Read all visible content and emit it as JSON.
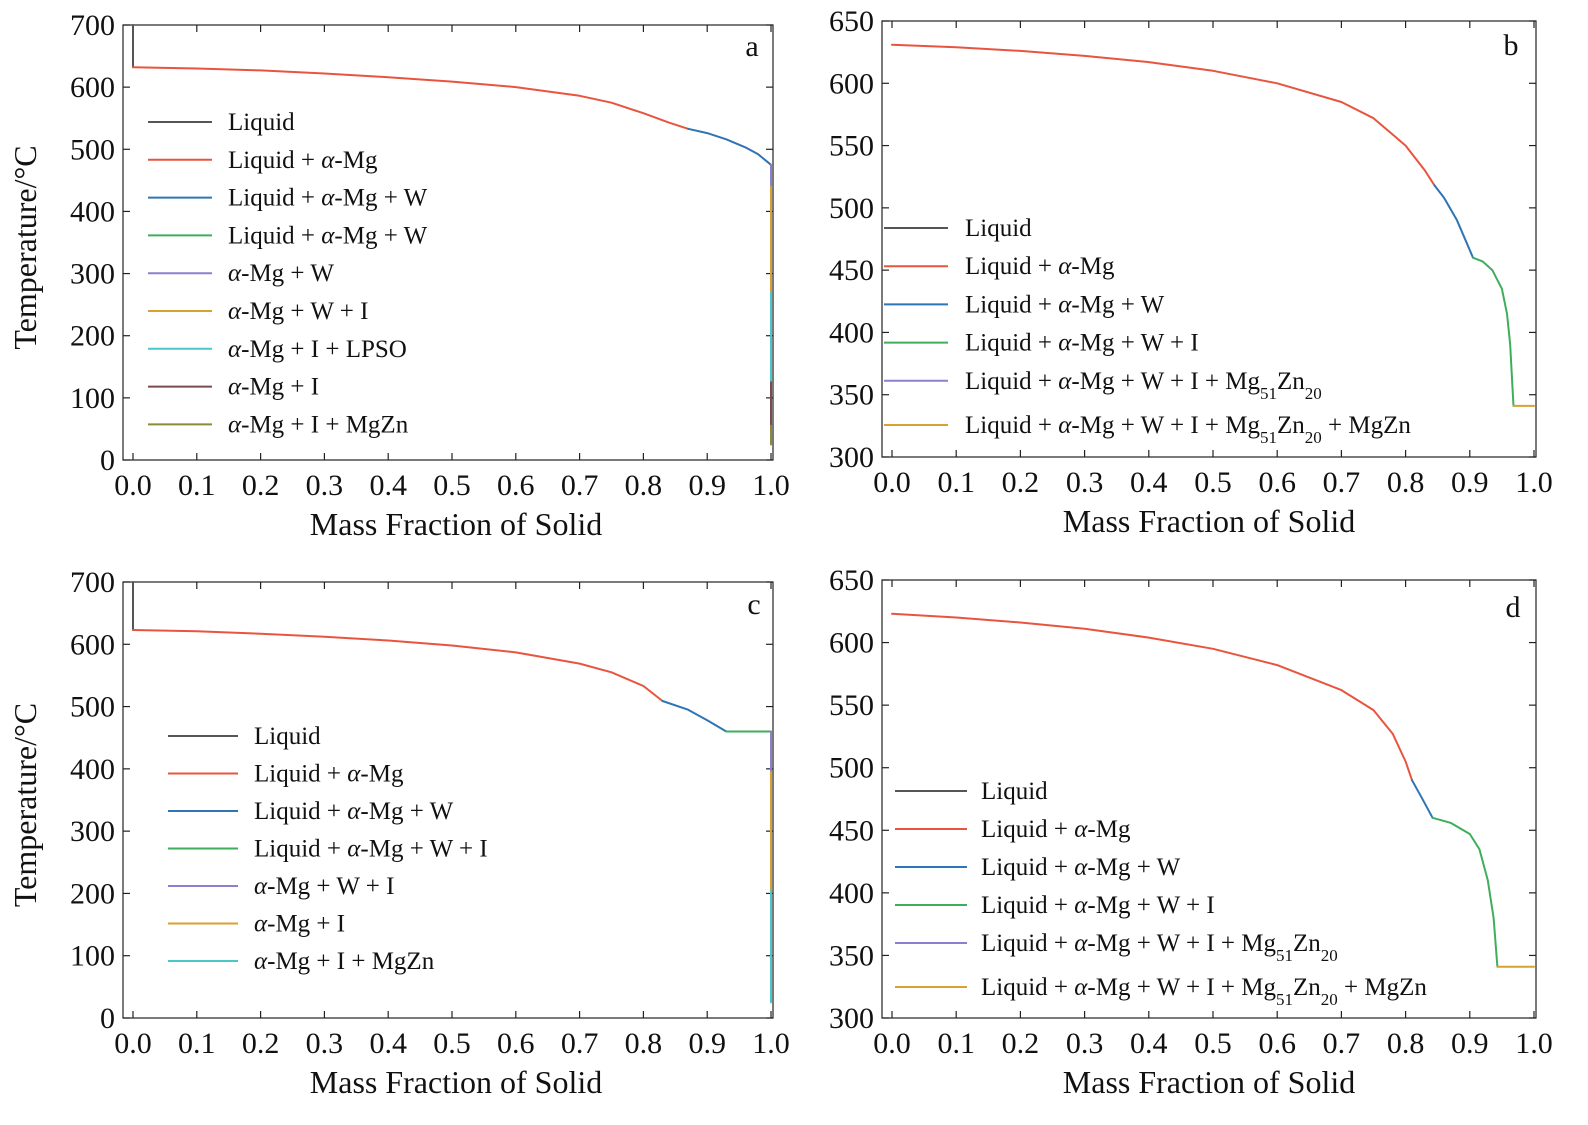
{
  "figure": {
    "description_colors": {
      "Liquid": "#555555",
      "alpha": "#e8553f",
      "blue": "#2f74b5",
      "green": "#3daf5c",
      "purple": "#8d7fcf",
      "orange": "#d9a032",
      "cyan": "#4cc7c7",
      "brown": "#7b4a4f",
      "olive": "#8e8a34"
    }
  },
  "chart_data": [
    {
      "type": "line",
      "panel": "a",
      "xlabel": "Mass Fraction of Solid",
      "ylabel": "Temperature/°C",
      "xlim": [
        0.0,
        1.0
      ],
      "ylim": [
        0,
        700
      ],
      "xticks": [
        "0.0",
        "0.1",
        "0.2",
        "0.3",
        "0.4",
        "0.5",
        "0.6",
        "0.7",
        "0.8",
        "0.9",
        "1.0"
      ],
      "yticks": [
        "0",
        "100",
        "200",
        "300",
        "400",
        "500",
        "600",
        "700"
      ],
      "legend": [
        {
          "label": "Liquid",
          "color": "#555555"
        },
        {
          "label": "Liquid + α-Mg",
          "color": "#e8553f"
        },
        {
          "label": "Liquid + α-Mg + W",
          "color": "#2f74b5"
        },
        {
          "label": "Liquid + α-Mg + W",
          "color": "#3daf5c"
        },
        {
          "label": "α-Mg + W",
          "color": "#8d7fcf"
        },
        {
          "label": "α-Mg + W + I",
          "color": "#d9a032"
        },
        {
          "label": "α-Mg + I + LPSO",
          "color": "#4cc7c7"
        },
        {
          "label": "α-Mg + I",
          "color": "#7b4a4f"
        },
        {
          "label": "α-Mg + I + MgZn",
          "color": "#8e8a34"
        }
      ],
      "series": [
        {
          "name": "Liquid",
          "color": "#555555",
          "points": [
            [
              0.0,
              700
            ],
            [
              0.0,
              632
            ]
          ]
        },
        {
          "name": "Liquid + α-Mg",
          "color": "#e8553f",
          "points": [
            [
              0.0,
              632
            ],
            [
              0.1,
              630
            ],
            [
              0.2,
              627
            ],
            [
              0.3,
              622
            ],
            [
              0.4,
              616
            ],
            [
              0.5,
              609
            ],
            [
              0.6,
              600
            ],
            [
              0.7,
              586
            ],
            [
              0.75,
              575
            ],
            [
              0.8,
              558
            ],
            [
              0.84,
              543
            ],
            [
              0.87,
              533
            ]
          ]
        },
        {
          "name": "Liquid + α-Mg + W",
          "color": "#2f74b5",
          "points": [
            [
              0.87,
              533
            ],
            [
              0.9,
              526
            ],
            [
              0.93,
              516
            ],
            [
              0.96,
              503
            ],
            [
              0.98,
              492
            ],
            [
              1.0,
              475
            ]
          ]
        },
        {
          "name": "α-Mg + W",
          "color": "#8d7fcf",
          "points": [
            [
              1.0,
              475
            ],
            [
              1.0,
              440
            ]
          ]
        },
        {
          "name": "α-Mg + W + I",
          "color": "#d9a032",
          "points": [
            [
              1.0,
              440
            ],
            [
              1.0,
              270
            ]
          ]
        },
        {
          "name": "α-Mg + I + LPSO",
          "color": "#4cc7c7",
          "points": [
            [
              1.0,
              270
            ],
            [
              1.0,
              125
            ]
          ]
        },
        {
          "name": "α-Mg + I",
          "color": "#7b4a4f",
          "points": [
            [
              1.0,
              125
            ],
            [
              1.0,
              55
            ]
          ]
        },
        {
          "name": "α-Mg + I + MgZn",
          "color": "#8e8a34",
          "points": [
            [
              1.0,
              55
            ],
            [
              1.0,
              25
            ]
          ]
        }
      ]
    },
    {
      "type": "line",
      "panel": "b",
      "xlabel": "Mass Fraction of Solid",
      "ylabel": "",
      "xlim": [
        0.0,
        1.0
      ],
      "ylim": [
        300,
        650
      ],
      "xticks": [
        "0.0",
        "0.1",
        "0.2",
        "0.3",
        "0.4",
        "0.5",
        "0.6",
        "0.7",
        "0.8",
        "0.9",
        "1.0"
      ],
      "yticks": [
        "300",
        "350",
        "400",
        "450",
        "500",
        "550",
        "600",
        "650"
      ],
      "legend": [
        {
          "label": "Liquid",
          "color": "#555555"
        },
        {
          "label": "Liquid + α-Mg",
          "color": "#e8553f"
        },
        {
          "label": "Liquid + α-Mg + W",
          "color": "#2f74b5"
        },
        {
          "label": "Liquid + α-Mg + W + I",
          "color": "#3daf5c"
        },
        {
          "label": "Liquid + α-Mg + W + I + Mg51Zn20",
          "color": "#8d7fcf"
        },
        {
          "label": "Liquid + α-Mg + W + I + Mg51Zn20 + MgZn",
          "color": "#d9a032"
        }
      ],
      "series": [
        {
          "name": "Liquid + α-Mg",
          "color": "#e8553f",
          "points": [
            [
              0.0,
              631
            ],
            [
              0.1,
              629
            ],
            [
              0.2,
              626
            ],
            [
              0.3,
              622
            ],
            [
              0.4,
              617
            ],
            [
              0.5,
              610
            ],
            [
              0.6,
              600
            ],
            [
              0.7,
              585
            ],
            [
              0.75,
              572
            ],
            [
              0.8,
              550
            ],
            [
              0.83,
              530
            ],
            [
              0.845,
              518
            ]
          ]
        },
        {
          "name": "Liquid + α-Mg + W",
          "color": "#2f74b5",
          "points": [
            [
              0.845,
              518
            ],
            [
              0.86,
              508
            ],
            [
              0.88,
              490
            ],
            [
              0.895,
              472
            ],
            [
              0.905,
              460
            ]
          ]
        },
        {
          "name": "Liquid + α-Mg + W + I",
          "color": "#3daf5c",
          "points": [
            [
              0.905,
              460
            ],
            [
              0.92,
              457
            ],
            [
              0.935,
              450
            ],
            [
              0.95,
              435
            ],
            [
              0.958,
              415
            ],
            [
              0.963,
              390
            ],
            [
              0.966,
              360
            ],
            [
              0.968,
              341
            ]
          ]
        },
        {
          "name": "Liquid + α-Mg + W + I + Mg51Zn20 + MgZn",
          "color": "#d9a032",
          "points": [
            [
              0.968,
              341
            ],
            [
              1.0,
              341
            ]
          ]
        }
      ]
    },
    {
      "type": "line",
      "panel": "c",
      "xlabel": "Mass Fraction of Solid",
      "ylabel": "Temperature/°C",
      "xlim": [
        0.0,
        1.0
      ],
      "ylim": [
        0,
        700
      ],
      "xticks": [
        "0.0",
        "0.1",
        "0.2",
        "0.3",
        "0.4",
        "0.5",
        "0.6",
        "0.7",
        "0.8",
        "0.9",
        "1.0"
      ],
      "yticks": [
        "0",
        "100",
        "200",
        "300",
        "400",
        "500",
        "600",
        "700"
      ],
      "legend": [
        {
          "label": "Liquid",
          "color": "#555555"
        },
        {
          "label": "Liquid + α-Mg",
          "color": "#e8553f"
        },
        {
          "label": "Liquid + α-Mg + W",
          "color": "#2f74b5"
        },
        {
          "label": "Liquid + α-Mg + W + I",
          "color": "#3daf5c"
        },
        {
          "label": "α-Mg + W + I",
          "color": "#8d7fcf"
        },
        {
          "label": "α-Mg + I",
          "color": "#d9a032"
        },
        {
          "label": "α-Mg + I + MgZn",
          "color": "#4cc7c7"
        }
      ],
      "series": [
        {
          "name": "Liquid",
          "color": "#555555",
          "points": [
            [
              0.0,
              700
            ],
            [
              0.0,
              623
            ]
          ]
        },
        {
          "name": "Liquid + α-Mg",
          "color": "#e8553f",
          "points": [
            [
              0.0,
              623
            ],
            [
              0.1,
              621
            ],
            [
              0.2,
              617
            ],
            [
              0.3,
              612
            ],
            [
              0.4,
              606
            ],
            [
              0.5,
              598
            ],
            [
              0.6,
              587
            ],
            [
              0.7,
              569
            ],
            [
              0.75,
              555
            ],
            [
              0.8,
              533
            ],
            [
              0.83,
              509
            ]
          ]
        },
        {
          "name": "Liquid + α-Mg + W",
          "color": "#2f74b5",
          "points": [
            [
              0.83,
              509
            ],
            [
              0.87,
              495
            ],
            [
              0.9,
              478
            ],
            [
              0.93,
              460
            ]
          ]
        },
        {
          "name": "Liquid + α-Mg + W + I",
          "color": "#3daf5c",
          "points": [
            [
              0.93,
              460
            ],
            [
              1.0,
              460
            ]
          ]
        },
        {
          "name": "α-Mg + W + I",
          "color": "#8d7fcf",
          "points": [
            [
              1.0,
              460
            ],
            [
              1.0,
              395
            ]
          ]
        },
        {
          "name": "α-Mg + I",
          "color": "#d9a032",
          "points": [
            [
              1.0,
              395
            ],
            [
              1.0,
              205
            ]
          ]
        },
        {
          "name": "α-Mg + I + MgZn",
          "color": "#4cc7c7",
          "points": [
            [
              1.0,
              205
            ],
            [
              1.0,
              25
            ]
          ]
        }
      ]
    },
    {
      "type": "line",
      "panel": "d",
      "xlabel": "Mass Fraction of Solid",
      "ylabel": "",
      "xlim": [
        0.0,
        1.0
      ],
      "ylim": [
        300,
        650
      ],
      "xticks": [
        "0.0",
        "0.1",
        "0.2",
        "0.3",
        "0.4",
        "0.5",
        "0.6",
        "0.7",
        "0.8",
        "0.9",
        "1.0"
      ],
      "yticks": [
        "300",
        "350",
        "400",
        "450",
        "500",
        "550",
        "600",
        "650"
      ],
      "legend": [
        {
          "label": "Liquid",
          "color": "#555555"
        },
        {
          "label": "Liquid + α-Mg",
          "color": "#e8553f"
        },
        {
          "label": "Liquid + α-Mg + W",
          "color": "#2f74b5"
        },
        {
          "label": "Liquid + α-Mg + W + I",
          "color": "#3daf5c"
        },
        {
          "label": "Liquid + α-Mg + W + I + Mg51Zn20",
          "color": "#8d7fcf"
        },
        {
          "label": "Liquid + α-Mg + W + I + Mg51Zn20 + MgZn",
          "color": "#d9a032"
        }
      ],
      "series": [
        {
          "name": "Liquid + α-Mg",
          "color": "#e8553f",
          "points": [
            [
              0.0,
              623
            ],
            [
              0.1,
              620
            ],
            [
              0.2,
              616
            ],
            [
              0.3,
              611
            ],
            [
              0.4,
              604
            ],
            [
              0.5,
              595
            ],
            [
              0.6,
              582
            ],
            [
              0.7,
              562
            ],
            [
              0.75,
              546
            ],
            [
              0.78,
              527
            ],
            [
              0.8,
              505
            ],
            [
              0.81,
              490
            ]
          ]
        },
        {
          "name": "Liquid + α-Mg + W",
          "color": "#2f74b5",
          "points": [
            [
              0.81,
              490
            ],
            [
              0.825,
              476
            ],
            [
              0.842,
              460
            ]
          ]
        },
        {
          "name": "Liquid + α-Mg + W + I",
          "color": "#3daf5c",
          "points": [
            [
              0.842,
              460
            ],
            [
              0.87,
              456
            ],
            [
              0.9,
              447
            ],
            [
              0.915,
              435
            ],
            [
              0.928,
              410
            ],
            [
              0.937,
              380
            ],
            [
              0.943,
              341
            ]
          ]
        },
        {
          "name": "Liquid + α-Mg + W + I + Mg51Zn20 + MgZn",
          "color": "#d9a032",
          "points": [
            [
              0.943,
              341
            ],
            [
              1.0,
              341
            ]
          ]
        }
      ]
    }
  ]
}
